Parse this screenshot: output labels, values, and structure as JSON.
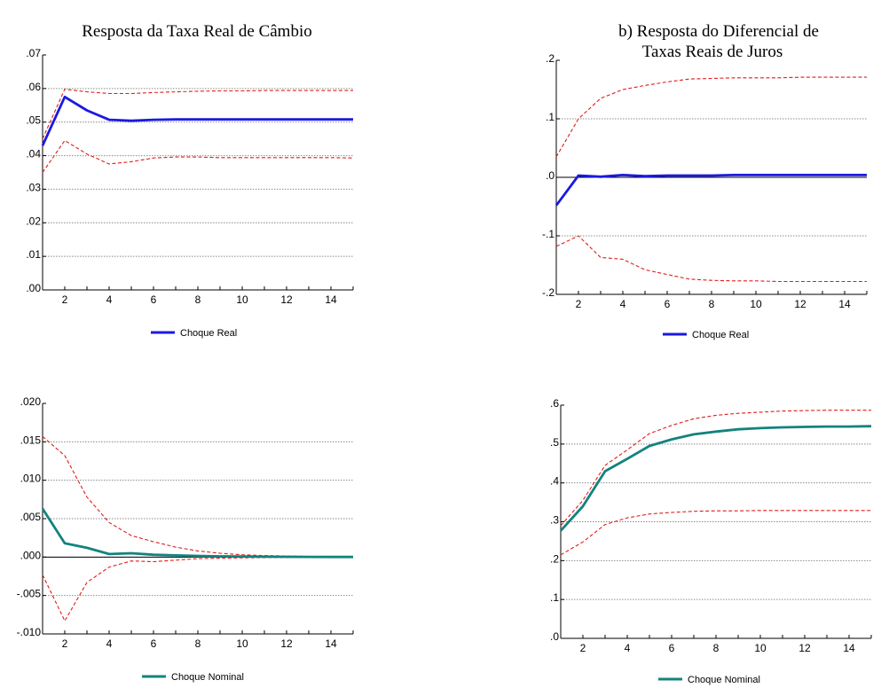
{
  "chart_data": [
    {
      "type": "line",
      "title": "Resposta da Taxa Real de Câmbio",
      "x": [
        1,
        2,
        3,
        4,
        5,
        6,
        7,
        8,
        9,
        10,
        11,
        12,
        13,
        14,
        15
      ],
      "xticks": [
        2,
        4,
        6,
        8,
        10,
        12,
        14
      ],
      "ylim": [
        0.0,
        0.07
      ],
      "yticks": [
        0.0,
        0.01,
        0.02,
        0.03,
        0.04,
        0.05,
        0.06,
        0.07
      ],
      "ytick_labels": [
        ".00",
        ".01",
        ".02",
        ".03",
        ".04",
        ".05",
        ".06",
        ".07"
      ],
      "grid": true,
      "legend": "bottom-center",
      "series": [
        {
          "name": "Choque Real",
          "color": "#1a1ae0",
          "role": "response",
          "values": [
            0.043,
            0.0575,
            0.0535,
            0.0507,
            0.0504,
            0.0507,
            0.0508,
            0.0508,
            0.0508,
            0.0508,
            0.0508,
            0.0508,
            0.0508,
            0.0508,
            0.0508
          ]
        },
        {
          "color": "#e01c1c",
          "role": "upper-band",
          "values": [
            0.045,
            0.0598,
            0.059,
            0.0585,
            0.0585,
            0.0588,
            0.059,
            0.0592,
            0.0593,
            0.0593,
            0.0594,
            0.0594,
            0.0594,
            0.0594,
            0.0594
          ]
        },
        {
          "color": "#e01c1c",
          "role": "lower-band",
          "values": [
            0.035,
            0.0445,
            0.0405,
            0.0375,
            0.0382,
            0.0393,
            0.0396,
            0.0396,
            0.0394,
            0.0394,
            0.0394,
            0.0394,
            0.0394,
            0.0394,
            0.0393
          ]
        }
      ]
    },
    {
      "type": "line",
      "title": "b) Resposta do  Diferencial de\nTaxas Reais de Juros",
      "x": [
        1,
        2,
        3,
        4,
        5,
        6,
        7,
        8,
        9,
        10,
        11,
        12,
        13,
        14,
        15
      ],
      "xticks": [
        2,
        4,
        6,
        8,
        10,
        12,
        14
      ],
      "ylim": [
        -0.2,
        0.2
      ],
      "yticks": [
        -0.2,
        -0.1,
        0.0,
        0.1,
        0.2
      ],
      "ytick_labels": [
        "-.2",
        "-.1",
        ".0",
        ".1",
        ".2"
      ],
      "grid": true,
      "legend": "bottom-center",
      "series": [
        {
          "name": "Choque Real",
          "color": "#1a1ae0",
          "role": "response",
          "values": [
            -0.048,
            0.003,
            0.001,
            0.004,
            0.002,
            0.003,
            0.003,
            0.003,
            0.004,
            0.004,
            0.004,
            0.004,
            0.004,
            0.004,
            0.004
          ]
        },
        {
          "color": "#e01c1c",
          "role": "upper-band",
          "values": [
            0.035,
            0.1,
            0.135,
            0.15,
            0.157,
            0.163,
            0.168,
            0.169,
            0.17,
            0.17,
            0.17,
            0.171,
            0.171,
            0.171,
            0.171
          ]
        },
        {
          "color": "#e01c1c",
          "role": "lower-band",
          "values": [
            -0.118,
            -0.1,
            -0.137,
            -0.14,
            -0.158,
            -0.166,
            -0.174,
            -0.176,
            -0.177,
            -0.177,
            -0.178,
            -0.178,
            -0.178,
            -0.178,
            -0.178
          ]
        }
      ]
    },
    {
      "type": "line",
      "title": "",
      "x": [
        1,
        2,
        3,
        4,
        5,
        6,
        7,
        8,
        9,
        10,
        11,
        12,
        13,
        14,
        15
      ],
      "xticks": [
        2,
        4,
        6,
        8,
        10,
        12,
        14
      ],
      "ylim": [
        -0.01,
        0.02
      ],
      "yticks": [
        -0.01,
        -0.005,
        0.0,
        0.005,
        0.01,
        0.015,
        0.02
      ],
      "ytick_labels": [
        "-.010",
        "-.005",
        ".000",
        ".005",
        ".010",
        ".015",
        ".020"
      ],
      "grid": true,
      "legend": "bottom-center",
      "series": [
        {
          "name": "Choque Nominal",
          "color": "#13837e",
          "role": "response",
          "values": [
            0.0063,
            0.0018,
            0.0012,
            0.0004,
            0.0005,
            0.0003,
            0.00022,
            0.00015,
            0.0001,
            7e-05,
            5e-05,
            4e-05,
            3e-05,
            2e-05,
            1e-05
          ]
        },
        {
          "color": "#e01c1c",
          "role": "upper-band",
          "values": [
            0.0157,
            0.0132,
            0.0078,
            0.0045,
            0.0028,
            0.002,
            0.0013,
            0.0008,
            0.0005,
            0.0003,
            0.0002,
            0.00014,
            0.0001,
            7e-05,
            5e-05
          ]
        },
        {
          "color": "#e01c1c",
          "role": "lower-band",
          "values": [
            -0.0023,
            -0.0083,
            -0.0033,
            -0.0013,
            -0.0005,
            -0.0006,
            -0.0004,
            -0.0002,
            -0.00015,
            -0.0001,
            -7e-05,
            -5e-05,
            -4e-05,
            -3e-05,
            -2e-05
          ]
        }
      ]
    },
    {
      "type": "line",
      "title": "",
      "x": [
        1,
        2,
        3,
        4,
        5,
        6,
        7,
        8,
        9,
        10,
        11,
        12,
        13,
        14,
        15
      ],
      "xticks": [
        2,
        4,
        6,
        8,
        10,
        12,
        14
      ],
      "ylim": [
        0.0,
        0.6
      ],
      "yticks": [
        0.0,
        0.1,
        0.2,
        0.3,
        0.4,
        0.5,
        0.6
      ],
      "ytick_labels": [
        ".0",
        ".1",
        ".2",
        ".3",
        ".4",
        ".5",
        ".6"
      ],
      "grid": true,
      "legend": "bottom-center",
      "series": [
        {
          "name": "Choque Nominal",
          "color": "#13837e",
          "role": "response",
          "values": [
            0.277,
            0.34,
            0.43,
            0.462,
            0.495,
            0.512,
            0.525,
            0.532,
            0.538,
            0.541,
            0.543,
            0.544,
            0.545,
            0.545,
            0.546
          ]
        },
        {
          "color": "#e01c1c",
          "role": "upper-band",
          "values": [
            0.29,
            0.355,
            0.445,
            0.485,
            0.527,
            0.548,
            0.565,
            0.574,
            0.579,
            0.582,
            0.585,
            0.586,
            0.587,
            0.587,
            0.587
          ]
        },
        {
          "color": "#e01c1c",
          "role": "lower-band",
          "values": [
            0.215,
            0.248,
            0.293,
            0.31,
            0.32,
            0.324,
            0.327,
            0.328,
            0.328,
            0.329,
            0.329,
            0.329,
            0.329,
            0.329,
            0.329
          ]
        }
      ]
    }
  ]
}
